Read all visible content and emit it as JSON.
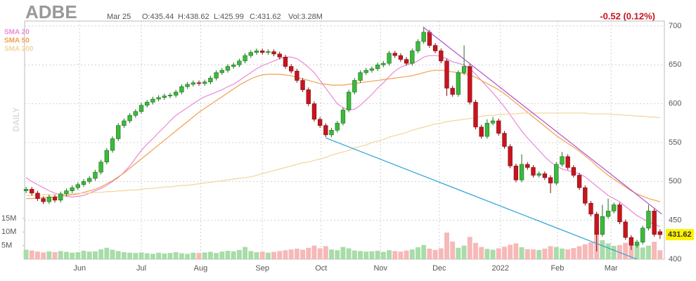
{
  "chart_data": {
    "type": "candlestick",
    "title": "ADBE",
    "date": "Mar 25",
    "ohlc_labels": [
      "O:435.44",
      "H:438.62",
      "L:425.99",
      "C:431.62"
    ],
    "volume_label": "Vol:3.28M",
    "change": "-0.52 (0.12%)",
    "period": "DAILY",
    "up_color": "#3cb93c",
    "down_color": "#c8141e",
    "up_volume_color": "#a8dca8",
    "down_volume_color": "#f7b8b8",
    "xlim": [
      -0.25,
      110.75
    ],
    "xticks": [
      {
        "value": 9.3,
        "label": "Jun"
      },
      {
        "value": 20,
        "label": "Jul"
      },
      {
        "value": 30.3,
        "label": "Aug"
      },
      {
        "value": 41,
        "label": "Sep"
      },
      {
        "value": 51.2,
        "label": "Oct"
      },
      {
        "value": 61.5,
        "label": "Nov"
      },
      {
        "value": 71.7,
        "label": "Dec"
      },
      {
        "value": 82.3,
        "label": "2022"
      },
      {
        "value": 92.2,
        "label": "Feb"
      },
      {
        "value": 101.5,
        "label": "Mar"
      }
    ],
    "ylim": [
      400,
      700
    ],
    "yticks": [
      400,
      450,
      500,
      550,
      600,
      650,
      700
    ],
    "grid": true,
    "vlim": [
      0,
      16
    ],
    "vticks": [
      {
        "value": 5,
        "label": "5M"
      },
      {
        "value": 10,
        "label": "10M"
      },
      {
        "value": 15,
        "label": "15M"
      }
    ],
    "open": [
      488,
      490,
      485,
      478,
      474,
      480,
      476,
      484,
      488,
      492,
      496,
      500,
      504,
      512,
      525,
      540,
      555,
      572,
      578,
      585,
      590,
      598,
      602,
      606,
      608,
      610,
      611,
      615,
      622,
      625,
      627,
      626,
      628,
      633,
      640,
      643,
      648,
      650,
      655,
      662,
      666,
      668,
      666,
      667,
      664,
      660,
      648,
      642,
      630,
      618,
      600,
      580,
      572,
      560,
      566,
      575,
      592,
      615,
      630,
      640,
      643,
      645,
      650,
      652,
      665,
      662,
      657,
      652,
      668,
      680,
      692,
      675,
      668,
      655,
      620,
      612,
      640,
      648,
      602,
      570,
      558,
      575,
      578,
      562,
      545,
      520,
      502,
      522,
      518,
      508,
      510,
      505,
      498,
      522,
      532,
      518,
      508,
      492,
      472,
      458,
      432,
      455,
      462,
      470,
      448,
      428,
      418,
      422,
      440,
      462,
      435.44
    ],
    "high": [
      493,
      493,
      488,
      481,
      483,
      483,
      487,
      491,
      495,
      499,
      503,
      507,
      515,
      528,
      543,
      558,
      575,
      581,
      588,
      593,
      601,
      605,
      609,
      611,
      613,
      614,
      618,
      625,
      628,
      630,
      630,
      631,
      636,
      643,
      646,
      651,
      653,
      658,
      665,
      669,
      671,
      671,
      670,
      670,
      667,
      663,
      651,
      645,
      633,
      621,
      603,
      583,
      575,
      569,
      578,
      595,
      618,
      633,
      643,
      646,
      648,
      653,
      655,
      668,
      668,
      665,
      660,
      671,
      683,
      699,
      695,
      678,
      671,
      658,
      623,
      643,
      675,
      651,
      605,
      573,
      580,
      583,
      581,
      565,
      548,
      523,
      535,
      525,
      521,
      513,
      513,
      508,
      525,
      538,
      535,
      521,
      511,
      495,
      475,
      461,
      470,
      478,
      473,
      473,
      451,
      431,
      425,
      443,
      470,
      465,
      438.62
    ],
    "low": [
      485,
      482,
      475,
      471,
      471,
      473,
      473,
      481,
      485,
      489,
      493,
      497,
      501,
      509,
      522,
      537,
      552,
      569,
      575,
      582,
      587,
      595,
      599,
      603,
      605,
      607,
      608,
      612,
      619,
      622,
      623,
      623,
      625,
      630,
      637,
      640,
      645,
      647,
      652,
      659,
      663,
      663,
      663,
      661,
      657,
      645,
      639,
      627,
      615,
      597,
      577,
      569,
      557,
      557,
      563,
      572,
      589,
      612,
      627,
      637,
      640,
      642,
      647,
      649,
      659,
      654,
      649,
      649,
      665,
      677,
      672,
      665,
      652,
      610,
      609,
      609,
      637,
      599,
      567,
      555,
      555,
      572,
      559,
      542,
      517,
      499,
      499,
      515,
      505,
      505,
      502,
      485,
      495,
      519,
      515,
      505,
      489,
      469,
      455,
      410,
      429,
      452,
      459,
      445,
      425,
      412,
      415,
      419,
      437,
      429,
      425.99
    ],
    "close": [
      490,
      485,
      478,
      474,
      480,
      476,
      484,
      488,
      492,
      496,
      500,
      504,
      512,
      525,
      540,
      555,
      572,
      578,
      585,
      590,
      598,
      602,
      606,
      608,
      610,
      611,
      615,
      622,
      625,
      627,
      626,
      628,
      633,
      640,
      643,
      648,
      650,
      655,
      662,
      666,
      668,
      666,
      667,
      664,
      660,
      648,
      642,
      630,
      618,
      600,
      580,
      572,
      560,
      566,
      575,
      592,
      615,
      630,
      640,
      643,
      645,
      650,
      652,
      665,
      662,
      657,
      652,
      668,
      680,
      692,
      675,
      668,
      655,
      620,
      612,
      640,
      648,
      602,
      570,
      558,
      575,
      578,
      562,
      545,
      520,
      502,
      522,
      518,
      508,
      510,
      505,
      498,
      522,
      532,
      518,
      508,
      492,
      472,
      458,
      432,
      455,
      462,
      470,
      448,
      428,
      418,
      422,
      440,
      462,
      432,
      431.62
    ],
    "volume": [
      3.5,
      3.2,
      2.8,
      2.5,
      2.9,
      2.6,
      3.0,
      2.7,
      2.4,
      2.6,
      3.1,
      2.8,
      2.9,
      3.6,
      4.2,
      3.5,
      3.0,
      2.6,
      2.4,
      2.3,
      2.5,
      2.2,
      2.0,
      2.4,
      2.1,
      2.3,
      2.6,
      2.2,
      2.0,
      2.4,
      2.3,
      2.5,
      2.7,
      2.3,
      2.8,
      3.1,
      2.9,
      3.4,
      4.5,
      3.0,
      2.6,
      2.8,
      2.4,
      2.7,
      3.0,
      3.3,
      3.6,
      3.9,
      3.5,
      4.2,
      5.0,
      4.0,
      4.8,
      3.6,
      3.3,
      4.5,
      4.0,
      3.2,
      3.0,
      2.8,
      2.9,
      3.1,
      2.7,
      3.3,
      3.0,
      2.8,
      3.2,
      3.6,
      4.4,
      5.2,
      3.9,
      3.4,
      4.0,
      9.8,
      6.5,
      4.2,
      5.0,
      8.2,
      6.0,
      4.5,
      3.8,
      3.5,
      4.0,
      4.6,
      5.3,
      5.8,
      4.4,
      3.7,
      3.6,
      3.4,
      3.9,
      4.8,
      4.5,
      3.9,
      3.6,
      4.1,
      4.8,
      5.5,
      6.2,
      11.5,
      7.0,
      5.8,
      4.9,
      5.2,
      6.0,
      6.8,
      5.4,
      4.3,
      5.0,
      6.4,
      3.28
    ],
    "series": [
      {
        "name": "SMA 20",
        "color": "#e88ad8",
        "values": [
          505,
          500,
          496,
          492,
          488,
          485,
          483,
          481,
          480,
          481,
          482,
          485,
          488,
          491,
          495,
          500,
          505,
          512,
          520,
          530,
          540,
          548,
          555,
          563,
          570,
          578,
          585,
          590,
          595,
          600,
          605,
          609,
          612,
          615,
          618,
          622,
          625,
          630,
          635,
          640,
          645,
          649,
          652,
          655,
          658,
          660,
          660,
          658,
          653,
          647,
          640,
          630,
          620,
          610,
          600,
          595,
          592,
          593,
          598,
          605,
          612,
          620,
          627,
          635,
          642,
          647,
          650,
          652,
          655,
          660,
          662,
          662,
          661,
          658,
          654,
          652,
          650,
          645,
          638,
          630,
          622,
          614,
          605,
          596,
          586,
          575,
          565,
          556,
          548,
          540,
          532,
          525,
          520,
          516,
          514,
          512,
          510,
          506,
          500,
          494,
          488,
          482,
          478,
          474,
          468,
          462,
          456,
          452,
          448,
          445,
          442
        ]
      },
      {
        "name": "SMA 50",
        "color": "#f0a050",
        "values": [
          478,
          478,
          479,
          479,
          480,
          480,
          481,
          482,
          483,
          484,
          486,
          488,
          490,
          493,
          497,
          501,
          506,
          511,
          517,
          523,
          529,
          535,
          541,
          547,
          553,
          559,
          565,
          571,
          577,
          583,
          589,
          594,
          599,
          604,
          609,
          614,
          619,
          624,
          628,
          632,
          635,
          637,
          638,
          638,
          638,
          637,
          636,
          634,
          632,
          630,
          628,
          626,
          625,
          624,
          624,
          624,
          625,
          626,
          627,
          628,
          629,
          630,
          631,
          632,
          633,
          634,
          635,
          636,
          638,
          640,
          642,
          643,
          643,
          642,
          641,
          640,
          639,
          637,
          634,
          630,
          626,
          622,
          618,
          613,
          607,
          601,
          595,
          589,
          583,
          577,
          571,
          565,
          559,
          554,
          549,
          544,
          539,
          533,
          527,
          520,
          514,
          508,
          503,
          498,
          493,
          488,
          484,
          481,
          478,
          476,
          474
        ]
      },
      {
        "name": "SMA 200",
        "color": "#f2d59a",
        "values": [
          482,
          482,
          482,
          483,
          483,
          483,
          484,
          484,
          484,
          485,
          485,
          485,
          486,
          486,
          487,
          487,
          488,
          488,
          489,
          489,
          490,
          491,
          491,
          492,
          493,
          493,
          494,
          495,
          495,
          496,
          497,
          498,
          499,
          500,
          501,
          502,
          503,
          504,
          505,
          506,
          508,
          510,
          512,
          514,
          516,
          518,
          520,
          522,
          524,
          525,
          527,
          529,
          531,
          534,
          536,
          538,
          540,
          543,
          545,
          547,
          550,
          552,
          554,
          557,
          559,
          561,
          563,
          566,
          568,
          570,
          572,
          574,
          575,
          577,
          578,
          579,
          580,
          581,
          582,
          584,
          585,
          585,
          586,
          586,
          587,
          587,
          588,
          588,
          588,
          588,
          588,
          588,
          588,
          588,
          588,
          588,
          588,
          588,
          587,
          587,
          587,
          587,
          586,
          586,
          585,
          585,
          584,
          584,
          583,
          583,
          582
        ]
      }
    ],
    "trendlines": [
      {
        "color": "#b04fc8",
        "x": [
          69,
          110.3
        ],
        "y": [
          698,
          458
        ]
      },
      {
        "color": "#29a3d6",
        "x": [
          52,
          106
        ],
        "y": [
          556,
          400
        ]
      }
    ]
  }
}
